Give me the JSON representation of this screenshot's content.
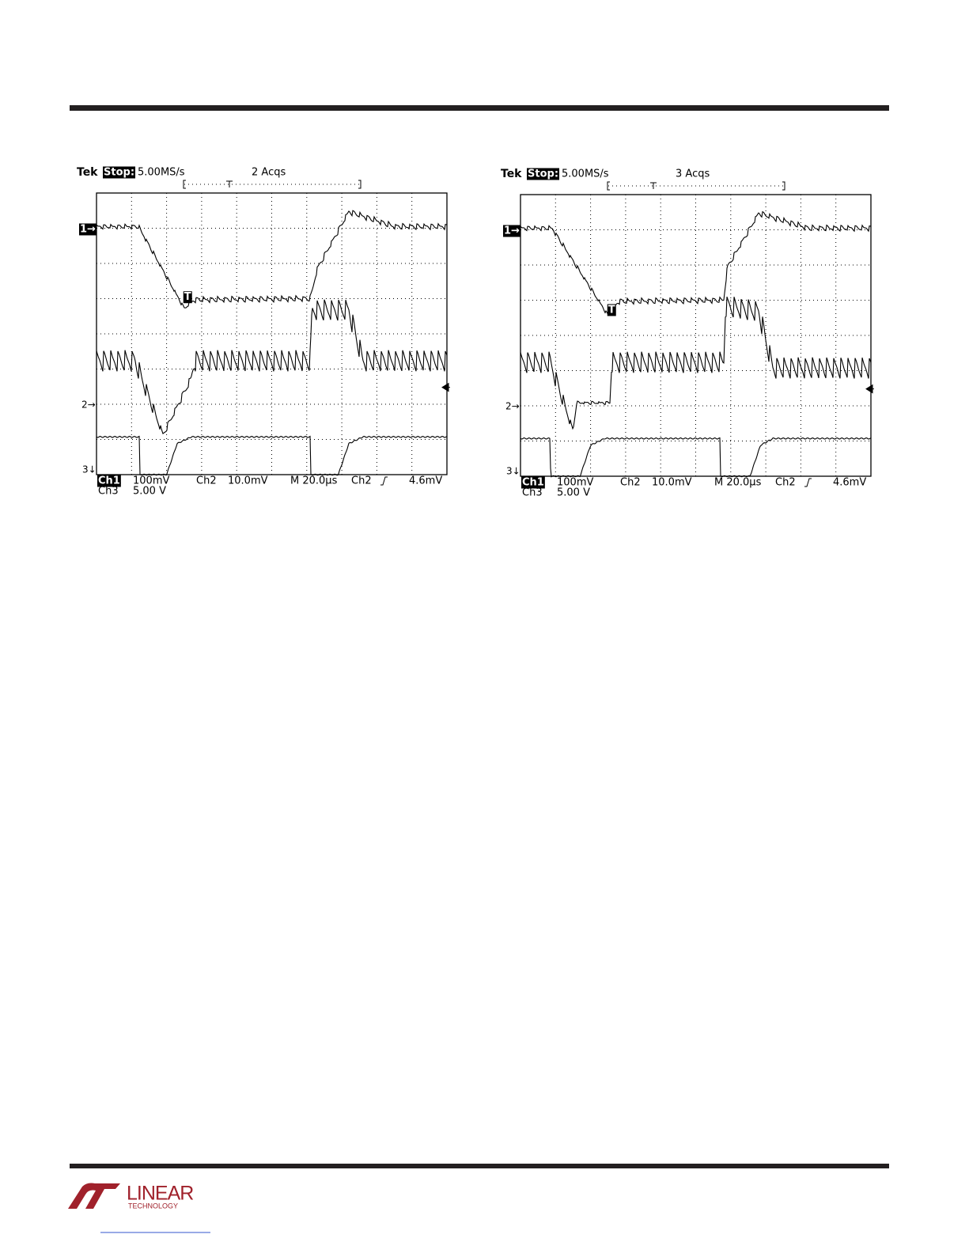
{
  "scopes": [
    {
      "header": {
        "brand": "Tek",
        "state": "Stop:",
        "rate": "5.00MS/s",
        "acqs": "2 Acqs"
      },
      "markers": {
        "ch1": "1→",
        "ch2": "2→",
        "ch3": "3↓",
        "trigger": "T"
      },
      "readout": {
        "ch1": "Ch1",
        "ch1_scale": "100mV",
        "ch2": "Ch2",
        "ch2_scale": "10.0mV",
        "timebase": "M 20.0µs",
        "trig_source": "Ch2",
        "trig_level": "4.6mV",
        "ch3": "Ch3",
        "ch3_scale": "5.00 V"
      }
    },
    {
      "header": {
        "brand": "Tek",
        "state": "Stop:",
        "rate": "5.00MS/s",
        "acqs": "3 Acqs"
      },
      "markers": {
        "ch1": "1→",
        "ch2": "2→",
        "ch3": "3↓",
        "trigger": "T"
      },
      "readout": {
        "ch1": "Ch1",
        "ch1_scale": "100mV",
        "ch2": "Ch2",
        "ch2_scale": "10.0mV",
        "timebase": "M 20.0µs",
        "trig_source": "Ch2",
        "trig_level": "4.6mV",
        "ch3": "Ch3",
        "ch3_scale": "5.00 V"
      }
    }
  ],
  "footer": {
    "logo": "LINEAR",
    "logo_sub": "TECHNOLOGY"
  }
}
